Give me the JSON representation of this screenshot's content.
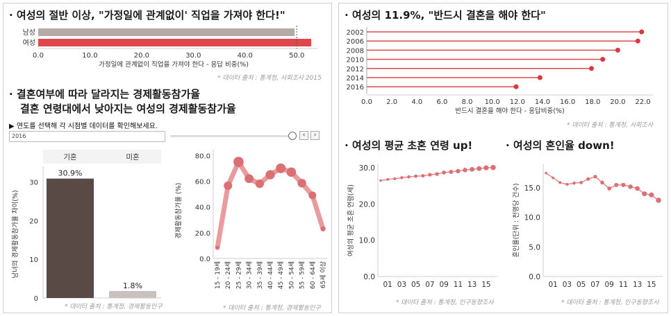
{
  "left": {
    "title1": "· 여성의 절반 이상, \"가정일에 관계없이' 직업을 가져야 한다!\"",
    "source1": "* 데이터 출처 : 통계청, 사회조사 2015",
    "title2a": "· 결혼여부에 따라 달라지는 경제활동참가율",
    "title2b": "결혼 연령대에서 낮아지는 여성의 경제활동참가율",
    "slider": {
      "label": "▶ 연도를 선택해 각 시점별 데이터를 확인해보세요.",
      "year": "2016",
      "prev": "‹",
      "next": "›"
    },
    "source_bar": "* 데이터 출처 : 통계청, 경제활동인구",
    "source_age": "* 데이터 출처 : 통계청, 경제활동인구"
  },
  "right": {
    "title1": "· 여성의 11.9%, \"반드시 결혼을 해야 한다\"",
    "source1": "* 데이터 출처 : 통계청, 사회조사",
    "title_age": "· 여성의 평균 초혼 연령 up!",
    "title_marriage": "· 여성의 혼인율 down!",
    "source_age": "* 데이터 출처 : 통계청, 인구동향조사",
    "source_marriage": "* 데이터 출처 : 통계청, 인구동향조사"
  },
  "colors": {
    "gray": "#b5aaa5",
    "red": "#e0474c",
    "dark": "#5a4a46",
    "lightgray": "#c8c1bd",
    "pink": "#e58a8c",
    "pinkdot": "#dc6f73"
  },
  "chart_data": [
    {
      "id": "work-regardless",
      "type": "bar",
      "orientation": "horizontal",
      "categories": [
        "남성",
        "여성"
      ],
      "values": [
        49.6,
        52.8
      ],
      "xlabel": "가정일에 관계없이 직업을 가져야 한다 - 응답 비중(%)",
      "xlim": [
        0,
        54
      ],
      "xticks": [
        "0.0",
        "10.0",
        "20.0",
        "30.0",
        "40.0",
        "50.0"
      ],
      "reference_line": 50
    },
    {
      "id": "must-marry",
      "type": "lollipop",
      "orientation": "horizontal",
      "categories": [
        "2002",
        "2006",
        "2008",
        "2010",
        "2012",
        "2014",
        "2016"
      ],
      "values": [
        21.9,
        21.6,
        20.0,
        18.8,
        17.9,
        13.8,
        11.9
      ],
      "xlabel": "반드시 결혼을 해야 한다 - 응답비중(%)",
      "xlim": [
        0,
        22.8
      ],
      "xticks": [
        "0.0",
        "2.0",
        "4.0",
        "6.0",
        "8.0",
        "10.0",
        "12.0",
        "14.0",
        "16.0",
        "18.0",
        "20.0",
        "22.0"
      ]
    },
    {
      "id": "married-vs-single",
      "type": "bar",
      "categories": [
        "기혼",
        "미혼"
      ],
      "values": [
        30.9,
        1.8
      ],
      "labels": [
        "30.9%",
        "1.8%"
      ],
      "ylabel": "남녀의 경제활동참가율 차이(%)",
      "ylim": [
        0,
        33
      ],
      "yticks": [
        "0",
        "10",
        "20",
        "30"
      ]
    },
    {
      "id": "participation-by-age",
      "type": "line",
      "categories": [
        "15 - 19세",
        "20 - 24세",
        "25 - 29세",
        "30 - 34세",
        "35 - 39세",
        "40 - 44세",
        "45 - 49세",
        "50 - 54세",
        "55 - 59세",
        "60 - 64세",
        "65세 이상"
      ],
      "values": [
        8.5,
        56.5,
        75.0,
        62.0,
        58.0,
        65.0,
        70.0,
        67.0,
        58.5,
        49.0,
        23.0
      ],
      "ylabel": "경제활동참가율 (%)",
      "ylim": [
        0,
        85
      ],
      "yticks": [
        "0.0",
        "20.0",
        "40.0",
        "60.0",
        "80.0"
      ]
    },
    {
      "id": "first-marriage-age",
      "type": "line",
      "x": [
        2000,
        2001,
        2002,
        2003,
        2004,
        2005,
        2006,
        2007,
        2008,
        2009,
        2010,
        2011,
        2012,
        2013,
        2014,
        2015,
        2016
      ],
      "values": [
        26.5,
        26.8,
        27.0,
        27.3,
        27.5,
        27.7,
        27.8,
        28.1,
        28.3,
        28.7,
        28.9,
        29.1,
        29.4,
        29.6,
        29.8,
        30.0,
        30.1
      ],
      "xticks": [
        "01",
        "03",
        "05",
        "07",
        "09",
        "11",
        "13",
        "15"
      ],
      "ylabel": "여성의 평균 초혼 연령(세)",
      "ylim": [
        0,
        31
      ],
      "yticks": [
        "0.0",
        "10.0",
        "20.0",
        "30.0"
      ]
    },
    {
      "id": "marriage-rate",
      "type": "line",
      "x": [
        2000,
        2001,
        2002,
        2003,
        2004,
        2005,
        2006,
        2007,
        2008,
        2009,
        2010,
        2011,
        2012,
        2013,
        2014,
        2015,
        2016
      ],
      "values": [
        17.5,
        16.7,
        15.9,
        15.6,
        15.8,
        15.9,
        16.5,
        16.9,
        15.9,
        14.9,
        15.5,
        15.5,
        15.2,
        14.9,
        14.0,
        13.8,
        12.9
      ],
      "xticks": [
        "01",
        "03",
        "05",
        "07",
        "09",
        "11",
        "13",
        "15"
      ],
      "ylabel": "혼인율(단위 : 천명당 건수)",
      "ylim": [
        0,
        19
      ],
      "yticks": [
        "0.0",
        "5.0",
        "10.0",
        "15.0"
      ]
    }
  ]
}
